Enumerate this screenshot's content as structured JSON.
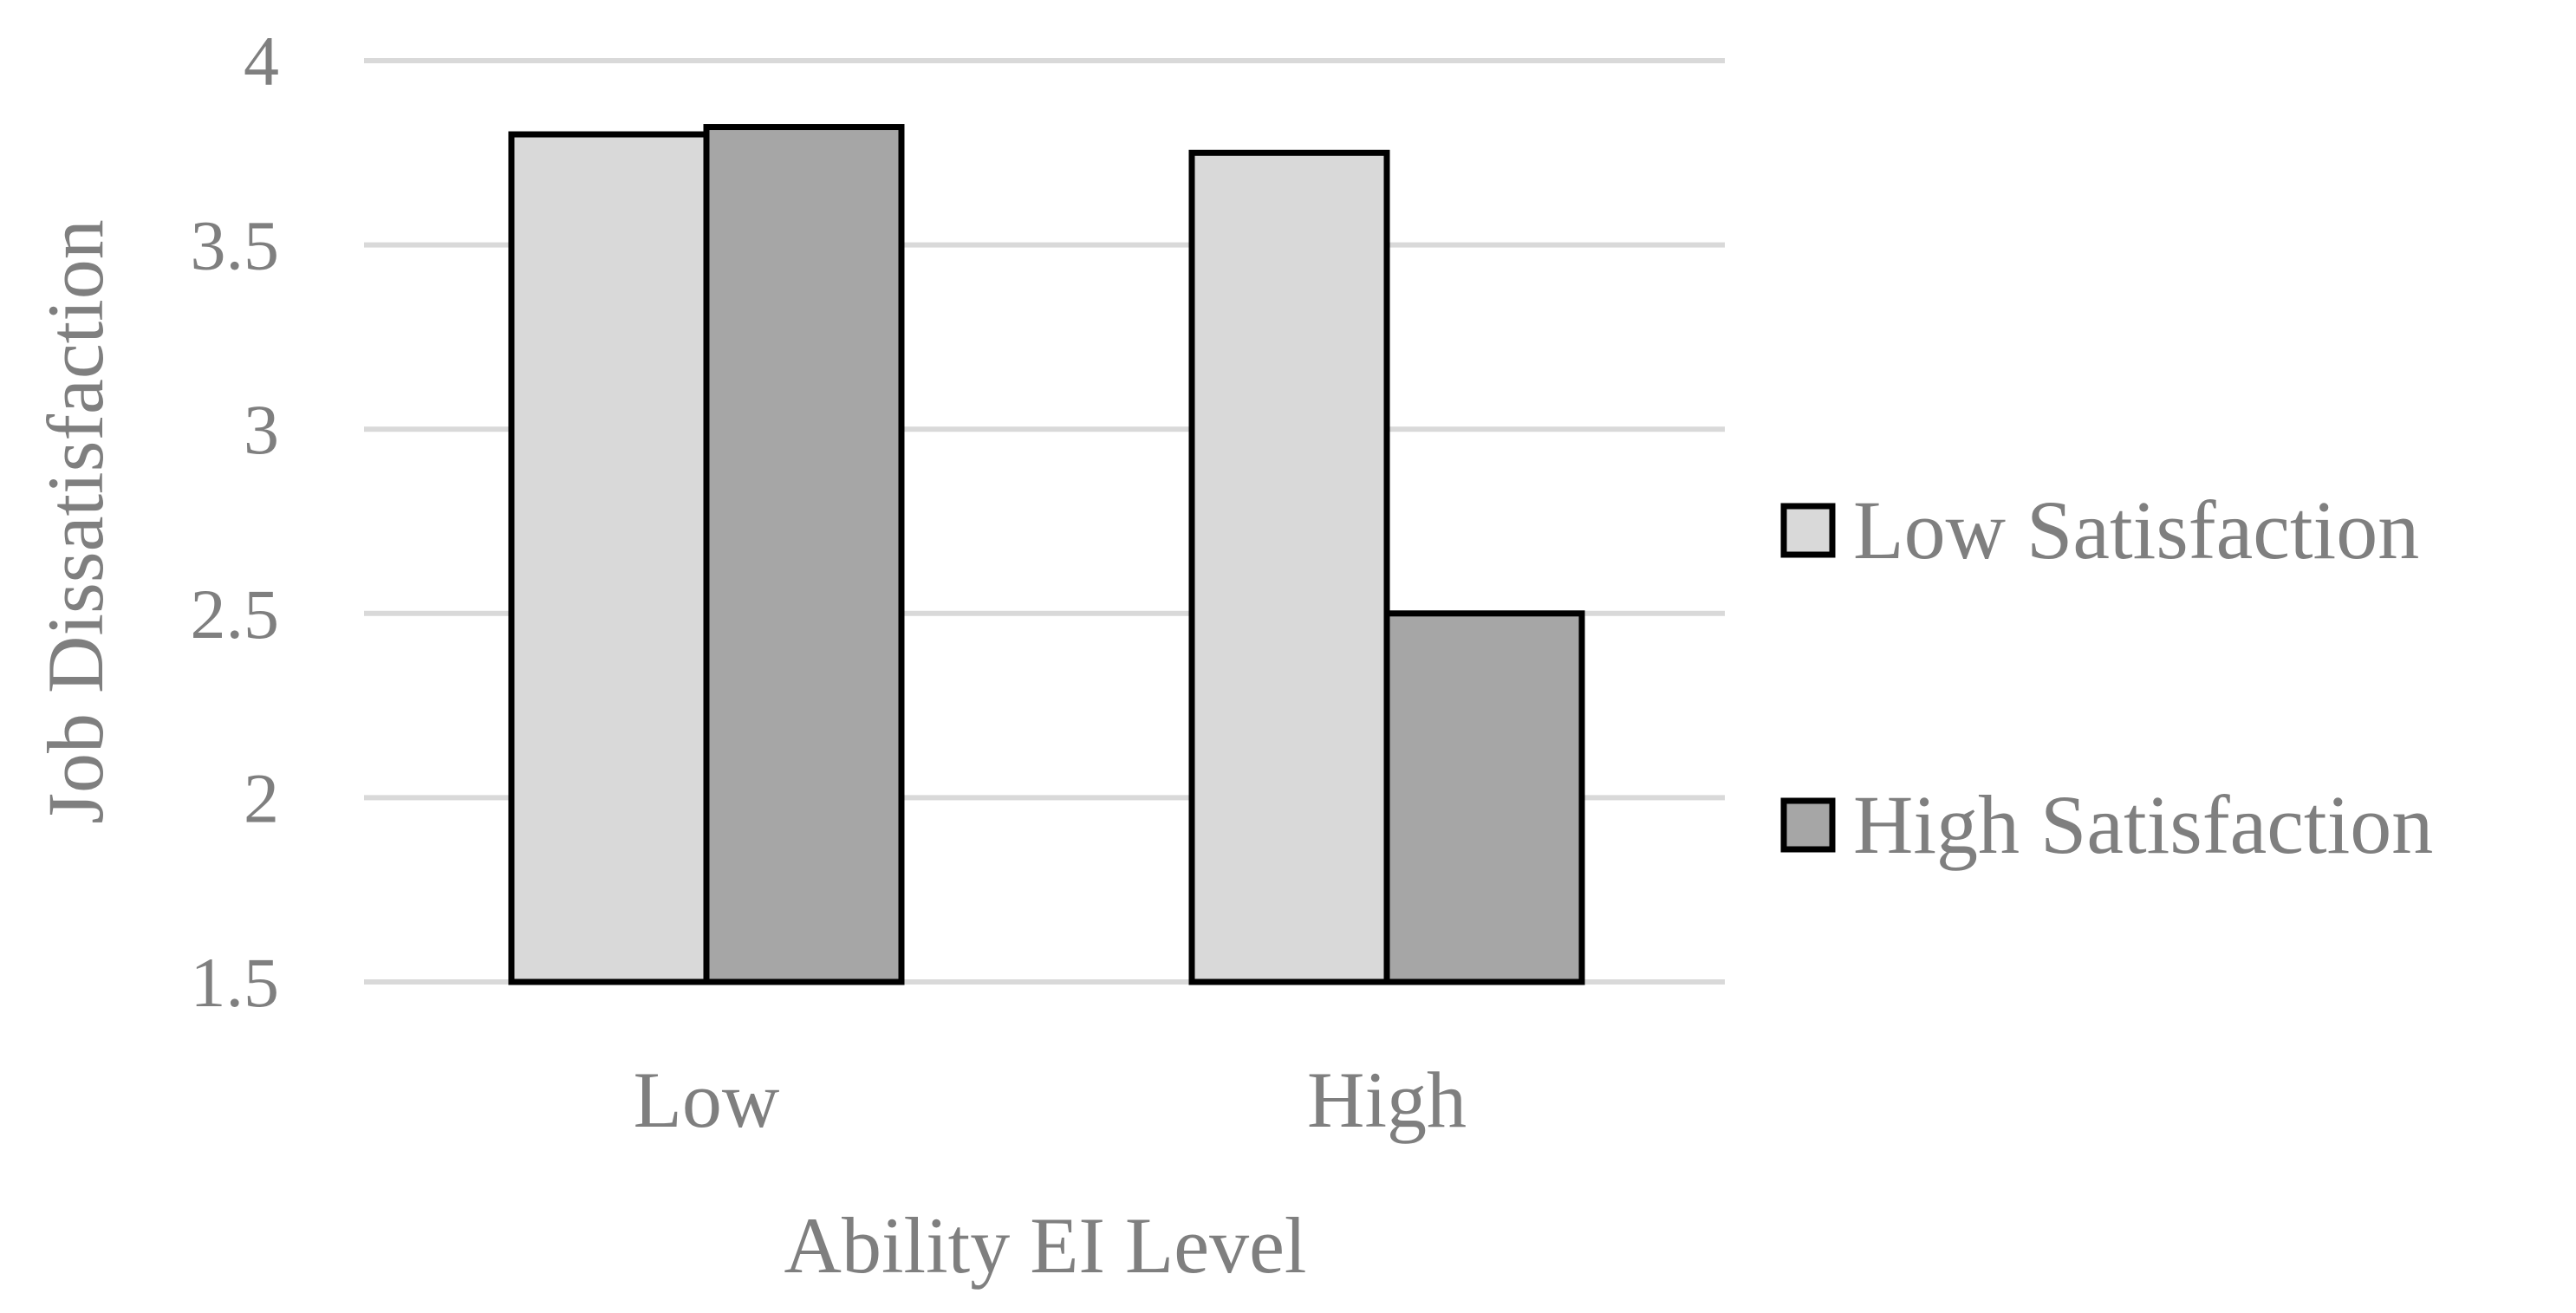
{
  "chart_data": {
    "type": "bar",
    "title": "",
    "xlabel": "Ability EI Level",
    "ylabel": "Job Dissatisfaction",
    "categories": [
      "Low",
      "High"
    ],
    "series": [
      {
        "name": "Low Satisfaction",
        "values": [
          3.8,
          3.75
        ],
        "color": "#d9d9d9"
      },
      {
        "name": "High Satisfaction",
        "values": [
          3.82,
          2.5
        ],
        "color": "#a6a6a6"
      }
    ],
    "ylim": [
      1.5,
      4
    ],
    "yticks": [
      "1.5",
      "2",
      "2.5",
      "3",
      "3.5",
      "4"
    ],
    "grid": true,
    "legend_position": "right"
  }
}
